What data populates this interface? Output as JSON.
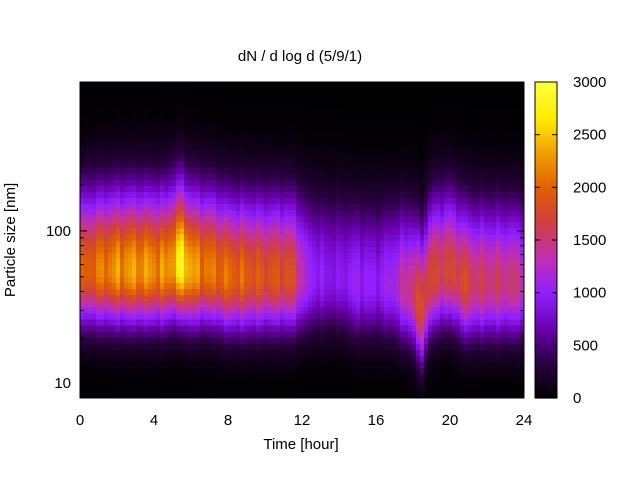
{
  "chart_data": {
    "type": "heatmap",
    "title": "dN / d log d (5/9/1)",
    "xlabel": "Time [hour]",
    "ylabel": "Particle size [nm]",
    "x_range": [
      0,
      24
    ],
    "x_ticks": [
      0,
      4,
      8,
      12,
      16,
      20,
      24
    ],
    "y_scale": "log",
    "y_range": [
      8,
      950
    ],
    "y_tick_labels": [
      {
        "value": 10,
        "label": "10"
      },
      {
        "value": 100,
        "label": "100"
      }
    ],
    "color_scale": {
      "range": [
        0,
        3000
      ],
      "ticks": [
        0,
        500,
        1000,
        1500,
        2000,
        2500,
        3000
      ],
      "colormap": [
        "#000000",
        "#2a0040",
        "#6b00b0",
        "#9020ff",
        "#c030b0",
        "#d04040",
        "#e06000",
        "#f0a000",
        "#ffee00",
        "#ffff40"
      ]
    },
    "intensity_profile": {
      "hours": [
        0,
        0.5,
        1,
        2,
        3,
        4,
        4.6,
        5.2,
        5.6,
        5.8,
        6.2,
        7,
        8,
        9,
        10,
        11,
        11.6,
        12.2,
        13,
        14,
        15,
        16,
        17,
        18,
        18.5,
        19,
        20,
        20.8,
        21.5,
        22,
        23,
        24
      ],
      "peak_density": [
        1850,
        2000,
        2100,
        2250,
        2300,
        2250,
        2200,
        2500,
        2850,
        2500,
        2250,
        2100,
        2050,
        1950,
        1850,
        1850,
        1750,
        1150,
        950,
        900,
        1050,
        950,
        1150,
        1550,
        1800,
        1700,
        1700,
        1750,
        1550,
        1550,
        1500,
        1450
      ],
      "peak_size_nm": [
        55,
        55,
        55,
        55,
        55,
        55,
        55,
        60,
        60,
        55,
        55,
        55,
        50,
        50,
        50,
        50,
        50,
        50,
        50,
        50,
        45,
        45,
        45,
        40,
        30,
        50,
        55,
        45,
        45,
        45,
        45,
        45
      ]
    }
  }
}
